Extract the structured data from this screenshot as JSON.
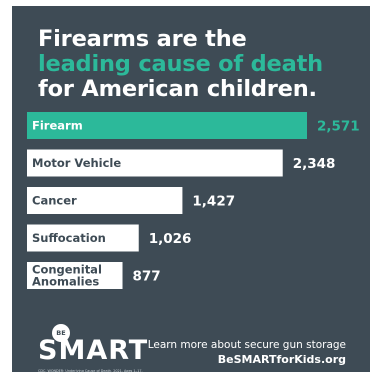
{
  "headline": {
    "line1": "Firearms are the",
    "line2": "leading cause of death",
    "line3": "for American children."
  },
  "chart_data": {
    "type": "bar",
    "orientation": "horizontal",
    "categories": [
      "Firearm",
      "Motor Vehicle",
      "Cancer",
      "Suffocation",
      "Congenital Anomalies"
    ],
    "values": [
      2571,
      2348,
      1427,
      1026,
      877
    ],
    "value_labels": [
      "2,571",
      "2,348",
      "1,427",
      "1,026",
      "877"
    ],
    "highlight_index": 0,
    "title": "",
    "xlabel": "",
    "ylabel": ""
  },
  "colors": {
    "background": "#3e4b55",
    "accent": "#2cb99a",
    "bar": "#ffffff"
  },
  "logo": {
    "badge": "BE",
    "wordmark": "SMART"
  },
  "source": "CDC, WONDER; Underlying Cause of Death, 2021. Ages 1–17.",
  "cta": {
    "line1": "Learn more about secure gun storage",
    "line2": "BeSMARTforKids.org"
  }
}
